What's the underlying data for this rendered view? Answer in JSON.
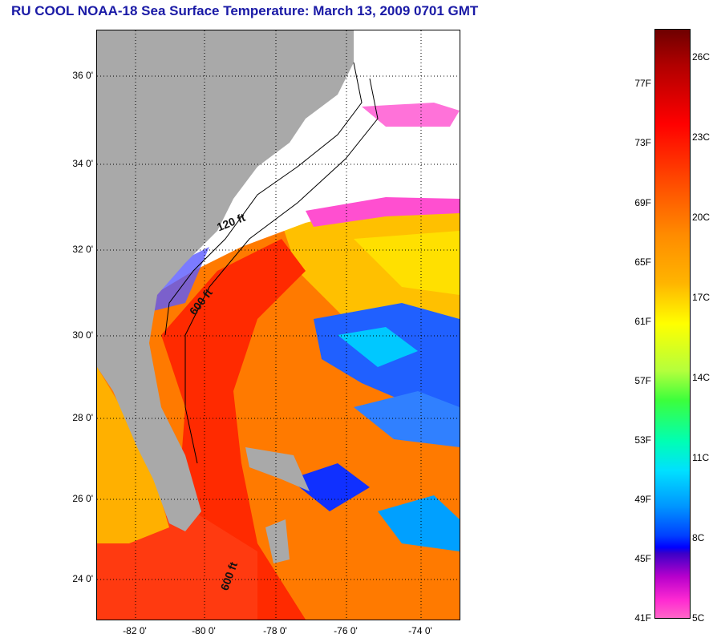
{
  "title": "RU COOL  NOAA-18  Sea Surface Temperature:  March 13, 2009 0701 GMT",
  "map": {
    "lat_labels": [
      "36 0'",
      "34 0'",
      "32 0'",
      "30 0'",
      "28 0'",
      "26 0'",
      "24 0'"
    ],
    "lon_labels": [
      "-82 0'",
      "-80 0'",
      "-78 0'",
      "-76 0'",
      "-74 0'"
    ],
    "contour_labels": [
      "120 ft",
      "600 ft",
      "600 ft"
    ],
    "colors": {
      "land": "#a9a9a9",
      "cloud": "#ffffff",
      "gulf_stream": "#ff3000",
      "warm": "#ff7a00",
      "mid": "#ffd000",
      "cool": "#0050ff",
      "cold": "#ff4fd0"
    }
  },
  "colorbar": {
    "fahrenheit_labels": [
      "77F",
      "73F",
      "69F",
      "65F",
      "61F",
      "57F",
      "53F",
      "49F",
      "45F",
      "41F"
    ],
    "celsius_labels": [
      "26C",
      "23C",
      "20C",
      "17C",
      "14C",
      "11C",
      "8C",
      "5C"
    ]
  }
}
